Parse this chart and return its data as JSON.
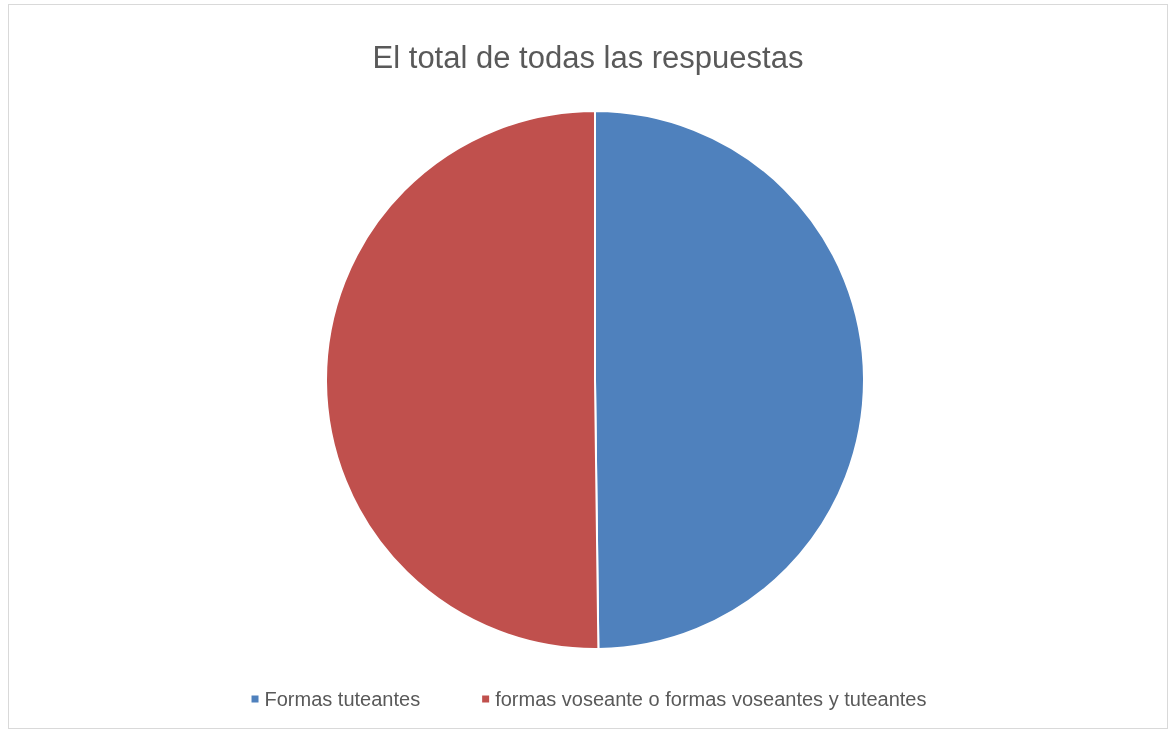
{
  "chart_data": {
    "type": "pie",
    "title": "El total de todas las respuestas",
    "categories": [
      "Formas tuteantes",
      "formas voseante o formas voseantes y tuteantes"
    ],
    "values": [
      49.8,
      50.2
    ],
    "colors": [
      "#4f81bd",
      "#c0504d"
    ],
    "legend": "bottom"
  }
}
